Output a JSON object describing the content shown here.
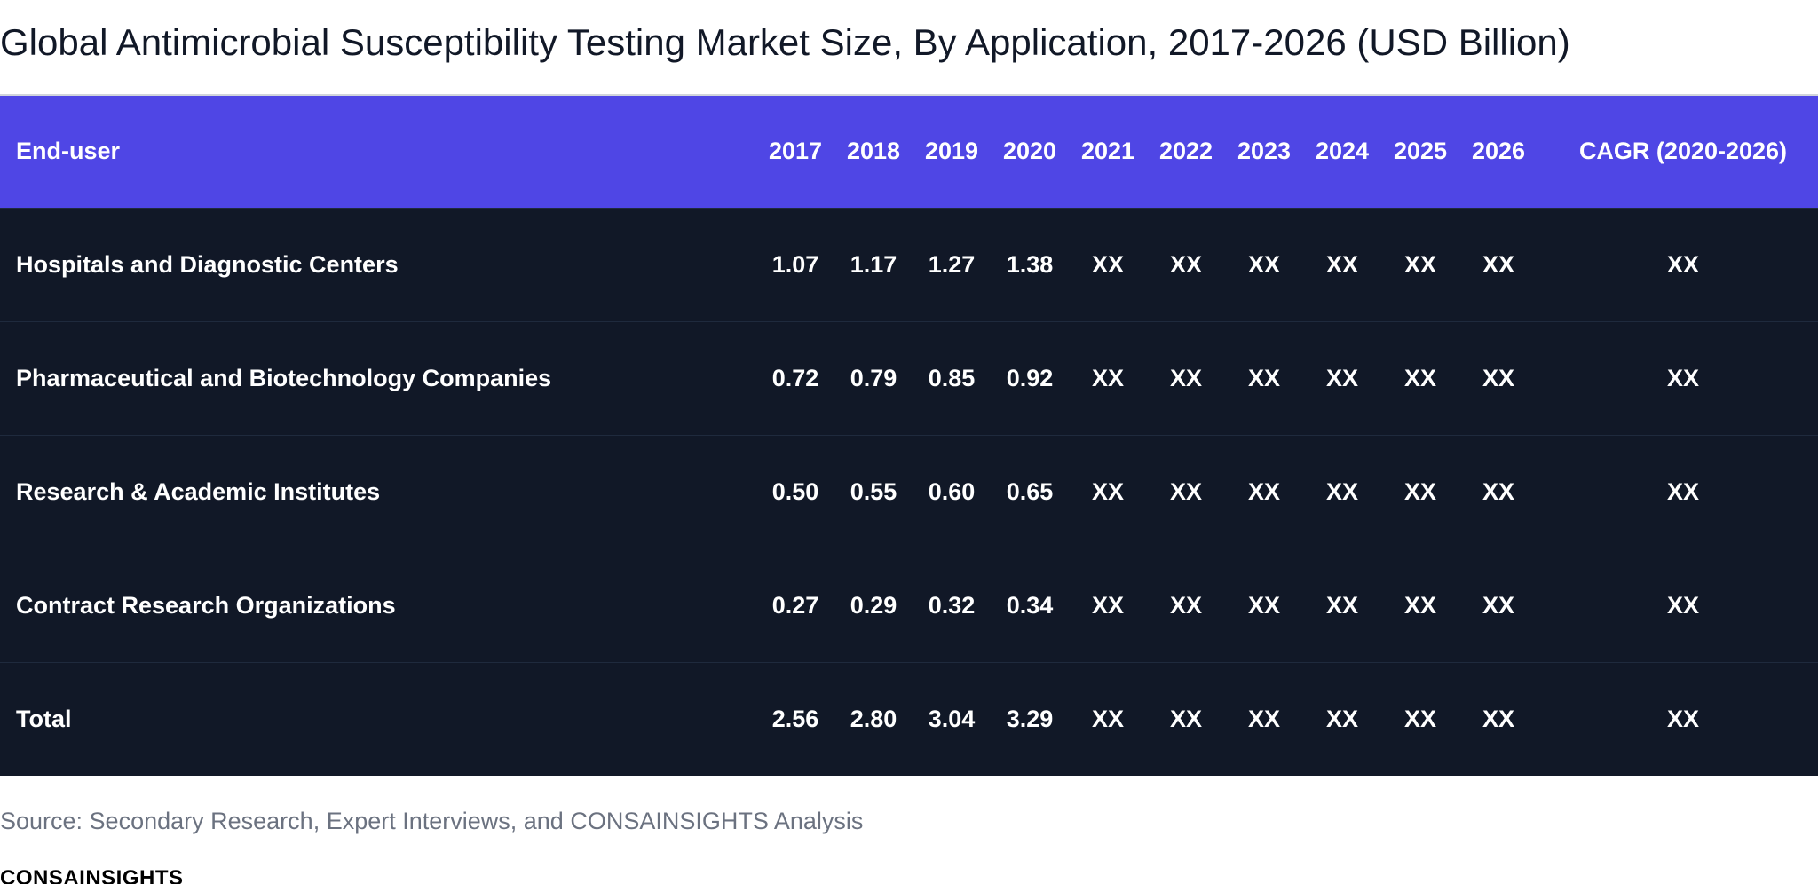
{
  "chart_data": {
    "type": "table",
    "title": "Global Antimicrobial Susceptibility Testing Market Size, By Application, 2017-2026 (USD Billion)",
    "columns": [
      "End-user",
      "2017",
      "2018",
      "2019",
      "2020",
      "2021",
      "2022",
      "2023",
      "2024",
      "2025",
      "2026",
      "CAGR (2020-2026)"
    ],
    "rows": [
      [
        "Hospitals and Diagnostic Centers",
        "1.07",
        "1.17",
        "1.27",
        "1.38",
        "XX",
        "XX",
        "XX",
        "XX",
        "XX",
        "XX",
        "XX"
      ],
      [
        "Pharmaceutical and Biotechnology Companies",
        "0.72",
        "0.79",
        "0.85",
        "0.92",
        "XX",
        "XX",
        "XX",
        "XX",
        "XX",
        "XX",
        "XX"
      ],
      [
        "Research & Academic Institutes",
        "0.50",
        "0.55",
        "0.60",
        "0.65",
        "XX",
        "XX",
        "XX",
        "XX",
        "XX",
        "XX",
        "XX"
      ],
      [
        "Contract Research Organizations",
        "0.27",
        "0.29",
        "0.32",
        "0.34",
        "XX",
        "XX",
        "XX",
        "XX",
        "XX",
        "XX",
        "XX"
      ],
      [
        "Total",
        "2.56",
        "2.80",
        "3.04",
        "3.29",
        "XX",
        "XX",
        "XX",
        "XX",
        "XX",
        "XX",
        "XX"
      ]
    ]
  },
  "source": "Source: Secondary Research, Expert Interviews, and CONSAINSIGHTS Analysis",
  "brand": "CONSAINSIGHTS",
  "colors": {
    "header_bg": "#4f46e5",
    "row_bg": "#111827",
    "row_divider": "#1f2a3d",
    "source_text": "#6b7280"
  }
}
